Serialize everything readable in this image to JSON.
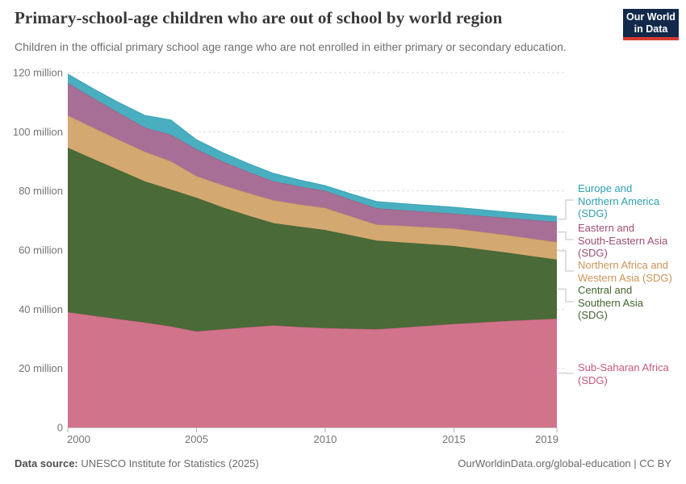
{
  "header": {
    "title": "Primary-school-age children who are out of school by world region",
    "subtitle": "Children in the official primary school age range who are not enrolled in either primary or secondary education.",
    "logo": {
      "line1": "Our World",
      "line2": "in Data"
    }
  },
  "chart_data": {
    "type": "area",
    "stacked": true,
    "title": "Primary-school-age children who are out of school by world region",
    "unit": "million children",
    "grid": "horizontal-dashed",
    "legend_position": "right",
    "ylim": [
      0,
      120
    ],
    "x": [
      2000,
      2001,
      2002,
      2003,
      2004,
      2005,
      2006,
      2007,
      2008,
      2009,
      2010,
      2011,
      2012,
      2013,
      2014,
      2015,
      2016,
      2017,
      2018,
      2019
    ],
    "x_ticks": [
      2000,
      2005,
      2010,
      2015,
      2019
    ],
    "y_ticks": [
      {
        "value": 0,
        "label": "0"
      },
      {
        "value": 20,
        "label": "20 million"
      },
      {
        "value": 40,
        "label": "40 million"
      },
      {
        "value": 60,
        "label": "60 million"
      },
      {
        "value": 80,
        "label": "80 million"
      },
      {
        "value": 100,
        "label": "100 million"
      },
      {
        "value": 120,
        "label": "120 million"
      }
    ],
    "series": [
      {
        "name": "Sub-Saharan Africa (SDG)",
        "fill": "#d2738c",
        "color": "#c45a7b",
        "values": [
          39.0,
          37.8,
          36.6,
          35.5,
          34.2,
          32.5,
          33.2,
          33.9,
          34.5,
          34.0,
          33.6,
          33.4,
          33.2,
          33.8,
          34.4,
          35.0,
          35.5,
          36.0,
          36.4,
          36.8
        ]
      },
      {
        "name": "Central and Southern Asia (SDG)",
        "fill": "#4a6a38",
        "color": "#41632e",
        "values": [
          55.6,
          53.0,
          50.4,
          47.7,
          46.3,
          45.2,
          41.3,
          37.8,
          34.6,
          33.9,
          33.2,
          31.6,
          30.0,
          28.8,
          27.6,
          26.4,
          24.8,
          23.2,
          21.6,
          20.0
        ]
      },
      {
        "name": "Northern Africa and Western Asia (SDG)",
        "fill": "#d3a871",
        "color": "#cd9355",
        "values": [
          10.9,
          10.5,
          10.2,
          10.0,
          9.5,
          7.3,
          7.5,
          7.6,
          7.7,
          7.5,
          7.4,
          6.4,
          5.4,
          5.6,
          5.7,
          5.9,
          5.9,
          5.9,
          5.9,
          5.9
        ]
      },
      {
        "name": "Eastern and South-Eastern Asia (SDG)",
        "fill": "#a76f96",
        "color": "#9c4e73",
        "values": [
          11.0,
          10.0,
          9.1,
          8.2,
          9.0,
          9.1,
          8.0,
          7.2,
          6.4,
          6.1,
          5.8,
          5.6,
          5.5,
          5.3,
          5.2,
          5.0,
          5.4,
          5.8,
          6.3,
          6.8
        ]
      },
      {
        "name": "Europe and Northern America (SDG)",
        "fill": "#49afc0",
        "color": "#2e9fb1",
        "values": [
          3.0,
          3.2,
          3.5,
          4.1,
          5.0,
          3.2,
          3.0,
          2.8,
          2.7,
          2.2,
          1.8,
          2.0,
          2.3,
          2.2,
          2.2,
          2.2,
          2.1,
          2.0,
          1.9,
          1.9
        ]
      }
    ]
  },
  "legend": {
    "items": [
      {
        "series": 4,
        "lines": [
          "Europe and",
          "Northern America",
          "(SDG)"
        ]
      },
      {
        "series": 3,
        "lines": [
          "Eastern and",
          "South-Eastern Asia",
          "(SDG)"
        ]
      },
      {
        "series": 2,
        "lines": [
          "Northern Africa and",
          "Western Asia (SDG)"
        ]
      },
      {
        "series": 1,
        "lines": [
          "Central and",
          "Southern Asia",
          "(SDG)"
        ]
      },
      {
        "series": 0,
        "lines": [
          "Sub-Saharan Africa",
          "(SDG)"
        ]
      }
    ]
  },
  "footer": {
    "source_label": "Data source:",
    "source_text": "UNESCO Institute for Statistics (2025)",
    "note_right": "OurWorldinData.org/global-education | CC BY"
  }
}
